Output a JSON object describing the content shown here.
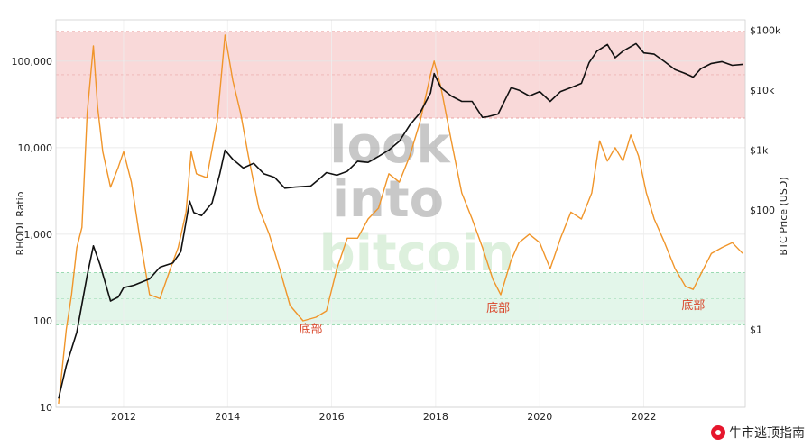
{
  "chart_data": {
    "type": "line",
    "title": "",
    "xlabel": "",
    "ylabel": "RHODL Ratio",
    "y2label": "BTC Price (USD)",
    "yscale": "log",
    "ylim": [
      10,
      300000
    ],
    "y2scale": "log",
    "y2lim": [
      0.05,
      150000
    ],
    "xlim": [
      2010.7,
      2023.95
    ],
    "x_ticks": [
      "2012",
      "2014",
      "2016",
      "2018",
      "2020",
      "2022"
    ],
    "y_ticks": [
      "10",
      "100",
      "1,000",
      "10,000",
      "100,000"
    ],
    "y2_ticks": [
      "$1",
      "$100",
      "$1k",
      "$10k",
      "$100k"
    ],
    "bands": [
      {
        "name": "top",
        "color": "#f9d9d9",
        "from": 22000,
        "to": 220000
      },
      {
        "name": "bottom",
        "color": "#e3f6ea",
        "from": 90,
        "to": 360
      }
    ],
    "series": [
      {
        "color": "#f0952a",
        "axis": "left",
        "x": [
          2010.75,
          2010.9,
          2011.0,
          2011.1,
          2011.2,
          2011.3,
          2011.42,
          2011.5,
          2011.6,
          2011.75,
          2011.9,
          2012.0,
          2012.15,
          2012.3,
          2012.5,
          2012.7,
          2012.9,
          2013.05,
          2013.2,
          2013.3,
          2013.4,
          2013.6,
          2013.8,
          2013.95,
          2014.1,
          2014.25,
          2014.4,
          2014.6,
          2014.8,
          2015.0,
          2015.2,
          2015.45,
          2015.7,
          2015.9,
          2016.1,
          2016.3,
          2016.5,
          2016.7,
          2016.9,
          2017.1,
          2017.3,
          2017.5,
          2017.7,
          2017.9,
          2017.97,
          2018.1,
          2018.3,
          2018.5,
          2018.7,
          2018.9,
          2019.1,
          2019.25,
          2019.45,
          2019.6,
          2019.8,
          2020.0,
          2020.2,
          2020.4,
          2020.6,
          2020.8,
          2021.0,
          2021.15,
          2021.3,
          2021.45,
          2021.6,
          2021.75,
          2021.9,
          2022.05,
          2022.2,
          2022.4,
          2022.6,
          2022.8,
          2022.95,
          2023.1,
          2023.3,
          2023.5,
          2023.7,
          2023.9
        ],
        "y": [
          11,
          80,
          200,
          700,
          1200,
          25000,
          150000,
          30000,
          9000,
          3500,
          6000,
          9000,
          4000,
          1000,
          200,
          180,
          400,
          700,
          1800,
          9000,
          5000,
          4500,
          20000,
          200000,
          60000,
          25000,
          8000,
          2000,
          1000,
          400,
          150,
          100,
          110,
          130,
          400,
          900,
          900,
          1500,
          2000,
          5000,
          4000,
          8000,
          20000,
          70000,
          100000,
          50000,
          12000,
          3000,
          1500,
          700,
          300,
          200,
          500,
          800,
          1000,
          800,
          400,
          900,
          1800,
          1500,
          3000,
          12000,
          7000,
          10000,
          7000,
          14000,
          8000,
          3000,
          1500,
          800,
          400,
          250,
          230,
          350,
          600,
          700,
          800,
          600
        ]
      },
      {
        "color": "#111111",
        "axis": "right",
        "x": [
          2010.75,
          2010.9,
          2011.1,
          2011.3,
          2011.42,
          2011.55,
          2011.75,
          2011.9,
          2012.0,
          2012.2,
          2012.5,
          2012.7,
          2012.95,
          2013.1,
          2013.27,
          2013.35,
          2013.5,
          2013.7,
          2013.85,
          2013.95,
          2014.1,
          2014.3,
          2014.5,
          2014.7,
          2014.9,
          2015.1,
          2015.3,
          2015.6,
          2015.8,
          2015.9,
          2016.1,
          2016.3,
          2016.5,
          2016.7,
          2016.9,
          2017.1,
          2017.3,
          2017.5,
          2017.7,
          2017.9,
          2017.97,
          2018.1,
          2018.3,
          2018.5,
          2018.7,
          2018.9,
          2019.0,
          2019.2,
          2019.45,
          2019.6,
          2019.8,
          2020.0,
          2020.2,
          2020.4,
          2020.6,
          2020.8,
          2020.95,
          2021.1,
          2021.3,
          2021.45,
          2021.6,
          2021.85,
          2022.0,
          2022.2,
          2022.4,
          2022.6,
          2022.8,
          2022.95,
          2023.1,
          2023.3,
          2023.5,
          2023.7,
          2023.9
        ],
        "y": [
          0.07,
          0.25,
          0.9,
          8,
          25,
          12,
          3,
          3.5,
          5,
          5.5,
          7,
          11,
          13,
          20,
          140,
          90,
          80,
          130,
          400,
          1000,
          700,
          500,
          600,
          400,
          350,
          230,
          240,
          250,
          350,
          420,
          380,
          440,
          650,
          620,
          780,
          1000,
          1400,
          2600,
          4200,
          9000,
          19000,
          11000,
          8000,
          6500,
          6500,
          3500,
          3600,
          4000,
          11000,
          10000,
          8000,
          9500,
          6500,
          9500,
          11000,
          13000,
          29000,
          45000,
          58000,
          35000,
          45000,
          60000,
          42000,
          40000,
          30000,
          22000,
          19000,
          16500,
          23000,
          28000,
          30000,
          26000,
          27000
        ]
      }
    ],
    "annotations": [
      {
        "text": "底部",
        "x": 2015.6,
        "y": 80
      },
      {
        "text": "底部",
        "x": 2019.2,
        "y": 140
      },
      {
        "text": "底部",
        "x": 2022.95,
        "y": 150
      }
    ]
  },
  "watermark": {
    "line1": "look",
    "line2": "into",
    "line3": "bitcoin"
  },
  "credit": {
    "text": "牛市逃顶指南"
  }
}
